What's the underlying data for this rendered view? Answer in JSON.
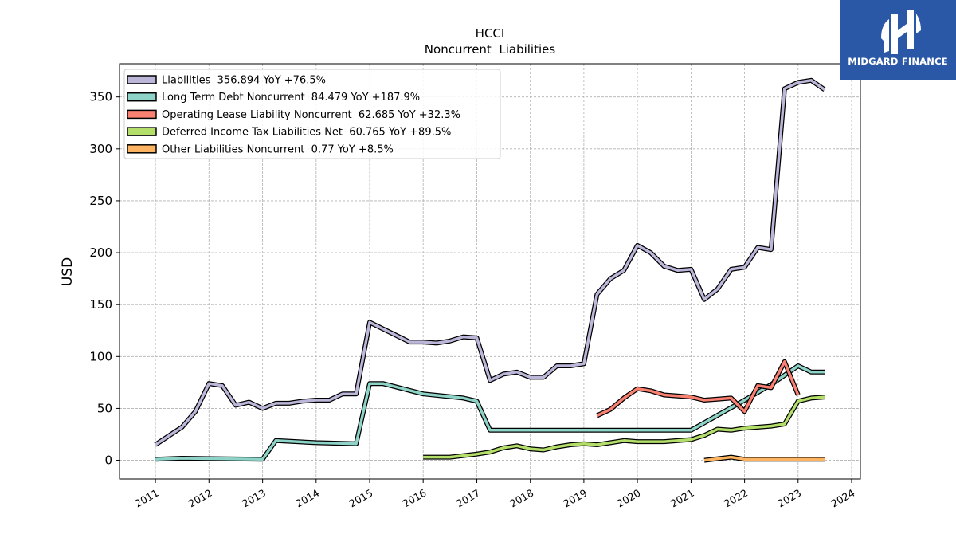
{
  "chart_data": {
    "type": "line",
    "title": "HCCI",
    "subtitle": "Noncurrent  Liabilities",
    "ylabel": "USD",
    "xlabel": "",
    "ylim": [
      -18,
      382
    ],
    "xlim": [
      "2010-05-01",
      "2024-03-01"
    ],
    "yticks": [
      0,
      50,
      100,
      150,
      200,
      250,
      300,
      350
    ],
    "xticks": [
      "2011",
      "2012",
      "2013",
      "2014",
      "2015",
      "2016",
      "2017",
      "2018",
      "2019",
      "2020",
      "2021",
      "2022",
      "2023",
      "2024"
    ],
    "grid": true,
    "legend_position": "top-left",
    "series": [
      {
        "name": "Liabilities  356.894 YoY +76.5%",
        "color": "#bcb7d9",
        "points": [
          [
            "2011-01-01",
            15
          ],
          [
            "2011-07-01",
            32
          ],
          [
            "2011-10-01",
            47
          ],
          [
            "2012-01-01",
            74
          ],
          [
            "2012-04-01",
            72
          ],
          [
            "2012-07-01",
            53
          ],
          [
            "2012-10-01",
            56
          ],
          [
            "2013-01-01",
            50
          ],
          [
            "2013-04-01",
            55
          ],
          [
            "2013-07-01",
            55
          ],
          [
            "2013-10-01",
            57
          ],
          [
            "2014-01-01",
            58
          ],
          [
            "2014-04-01",
            58
          ],
          [
            "2014-07-01",
            64
          ],
          [
            "2014-10-01",
            64
          ],
          [
            "2015-01-01",
            133
          ],
          [
            "2015-10-01",
            114
          ],
          [
            "2016-01-01",
            114
          ],
          [
            "2016-04-01",
            113
          ],
          [
            "2016-07-01",
            115
          ],
          [
            "2016-10-01",
            119
          ],
          [
            "2017-01-01",
            118
          ],
          [
            "2017-04-01",
            77
          ],
          [
            "2017-07-01",
            83
          ],
          [
            "2017-10-01",
            85
          ],
          [
            "2018-01-01",
            80
          ],
          [
            "2018-04-01",
            80
          ],
          [
            "2018-07-01",
            91
          ],
          [
            "2018-10-01",
            91
          ],
          [
            "2019-01-01",
            93
          ],
          [
            "2019-04-01",
            160
          ],
          [
            "2019-07-01",
            175
          ],
          [
            "2019-10-01",
            183
          ],
          [
            "2020-01-01",
            207
          ],
          [
            "2020-04-01",
            200
          ],
          [
            "2020-07-01",
            187
          ],
          [
            "2020-10-01",
            183
          ],
          [
            "2021-01-01",
            184
          ],
          [
            "2021-04-01",
            155
          ],
          [
            "2021-07-01",
            165
          ],
          [
            "2021-10-01",
            184
          ],
          [
            "2022-01-01",
            186
          ],
          [
            "2022-04-01",
            205
          ],
          [
            "2022-07-01",
            203
          ],
          [
            "2022-10-01",
            358
          ],
          [
            "2023-01-01",
            364
          ],
          [
            "2023-04-01",
            366
          ],
          [
            "2023-07-01",
            357
          ]
        ]
      },
      {
        "name": "Long Term Debt Noncurrent  84.479 YoY +187.9%",
        "color": "#8dd3c7",
        "points": [
          [
            "2011-01-01",
            1
          ],
          [
            "2011-07-01",
            2
          ],
          [
            "2013-01-01",
            1
          ],
          [
            "2013-04-01",
            19
          ],
          [
            "2014-01-01",
            17
          ],
          [
            "2014-10-01",
            16
          ],
          [
            "2015-01-01",
            74
          ],
          [
            "2015-04-01",
            74
          ],
          [
            "2016-01-01",
            64
          ],
          [
            "2016-10-01",
            60
          ],
          [
            "2017-01-01",
            57
          ],
          [
            "2017-04-01",
            29
          ],
          [
            "2021-01-01",
            29
          ],
          [
            "2022-01-01",
            58
          ],
          [
            "2022-07-01",
            73
          ],
          [
            "2023-01-01",
            91
          ],
          [
            "2023-04-01",
            85
          ],
          [
            "2023-07-01",
            85
          ]
        ]
      },
      {
        "name": "Operating Lease Liability Noncurrent  62.685 YoY +32.3%",
        "color": "#fa8072",
        "points": [
          [
            "2019-04-01",
            43
          ],
          [
            "2019-07-01",
            49
          ],
          [
            "2019-10-01",
            60
          ],
          [
            "2020-01-01",
            69
          ],
          [
            "2020-04-01",
            67
          ],
          [
            "2020-07-01",
            63
          ],
          [
            "2020-10-01",
            62
          ],
          [
            "2021-01-01",
            61
          ],
          [
            "2021-04-01",
            58
          ],
          [
            "2021-07-01",
            59
          ],
          [
            "2021-10-01",
            60
          ],
          [
            "2022-01-01",
            47
          ],
          [
            "2022-04-01",
            72
          ],
          [
            "2022-07-01",
            70
          ],
          [
            "2022-10-01",
            95
          ],
          [
            "2023-01-01",
            63
          ]
        ]
      },
      {
        "name": "Deferred Income Tax Liabilities Net  60.765 YoY +89.5%",
        "color": "#b3de69",
        "points": [
          [
            "2016-01-01",
            3
          ],
          [
            "2016-07-01",
            3
          ],
          [
            "2017-01-01",
            6
          ],
          [
            "2017-04-01",
            8
          ],
          [
            "2017-07-01",
            12
          ],
          [
            "2017-10-01",
            14
          ],
          [
            "2018-01-01",
            11
          ],
          [
            "2018-04-01",
            10
          ],
          [
            "2018-07-01",
            13
          ],
          [
            "2018-10-01",
            15
          ],
          [
            "2019-01-01",
            16
          ],
          [
            "2019-04-01",
            15
          ],
          [
            "2019-10-01",
            19
          ],
          [
            "2020-01-01",
            18
          ],
          [
            "2020-04-01",
            18
          ],
          [
            "2020-07-01",
            18
          ],
          [
            "2021-01-01",
            20
          ],
          [
            "2021-04-01",
            24
          ],
          [
            "2021-07-01",
            30
          ],
          [
            "2021-10-01",
            29
          ],
          [
            "2022-01-01",
            31
          ],
          [
            "2022-07-01",
            33
          ],
          [
            "2022-10-01",
            35
          ],
          [
            "2023-01-01",
            57
          ],
          [
            "2023-04-01",
            60
          ],
          [
            "2023-07-01",
            61
          ]
        ]
      },
      {
        "name": "Other Liabilities Noncurrent  0.77 YoY +8.5%",
        "color": "#fdb462",
        "points": [
          [
            "2021-04-01",
            0
          ],
          [
            "2021-10-01",
            3
          ],
          [
            "2022-01-01",
            1
          ],
          [
            "2023-01-01",
            1
          ],
          [
            "2023-07-01",
            1
          ]
        ]
      }
    ]
  },
  "watermark": {
    "text": "MIDGARD FINANCE",
    "background": "#2b58a6"
  }
}
